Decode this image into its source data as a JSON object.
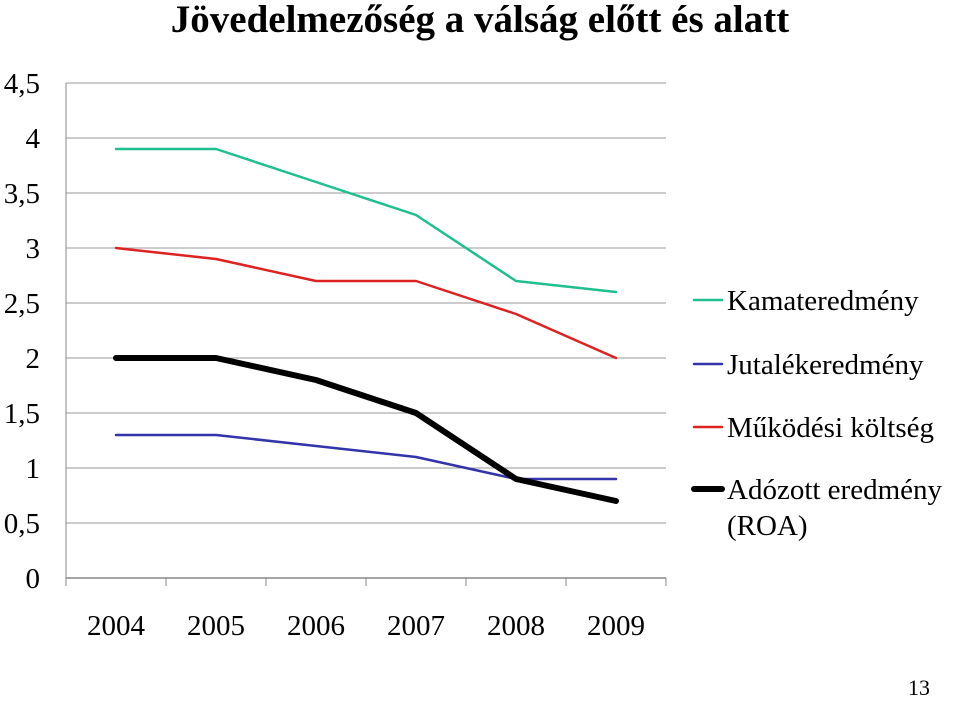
{
  "slide": {
    "title": "Jövedelmezőség a válság előtt és alatt",
    "page_number": "13"
  },
  "chart_data": {
    "type": "line",
    "title": "",
    "xlabel": "",
    "ylabel": "",
    "categories": [
      "2004",
      "2005",
      "2006",
      "2007",
      "2008",
      "2009"
    ],
    "ylim": [
      0,
      4.5
    ],
    "yticks": [
      0,
      0.5,
      1,
      1.5,
      2,
      2.5,
      3,
      3.5,
      4,
      4.5
    ],
    "ytick_labels": [
      "0",
      "0,5",
      "1",
      "1,5",
      "2",
      "2,5",
      "3",
      "3,5",
      "4",
      "4,5"
    ],
    "grid": true,
    "legend_position": "right",
    "series": [
      {
        "name": "Kamateredmény",
        "color": "#1fbf8f",
        "width": "thin",
        "values": [
          3.9,
          3.9,
          3.6,
          3.3,
          2.7,
          2.6
        ]
      },
      {
        "name": "Jutalékeredmény",
        "color": "#3333aa",
        "width": "thin",
        "values": [
          1.3,
          1.3,
          1.2,
          1.1,
          0.9,
          0.9
        ]
      },
      {
        "name": "Működési költség",
        "color": "#dd2222",
        "width": "thin",
        "values": [
          3.0,
          2.9,
          2.7,
          2.7,
          2.4,
          2.0
        ]
      },
      {
        "name": "Adózott eredmény (ROA)",
        "color": "#000000",
        "width": "thick",
        "values": [
          2.0,
          2.0,
          1.8,
          1.5,
          0.9,
          0.7
        ]
      }
    ]
  }
}
